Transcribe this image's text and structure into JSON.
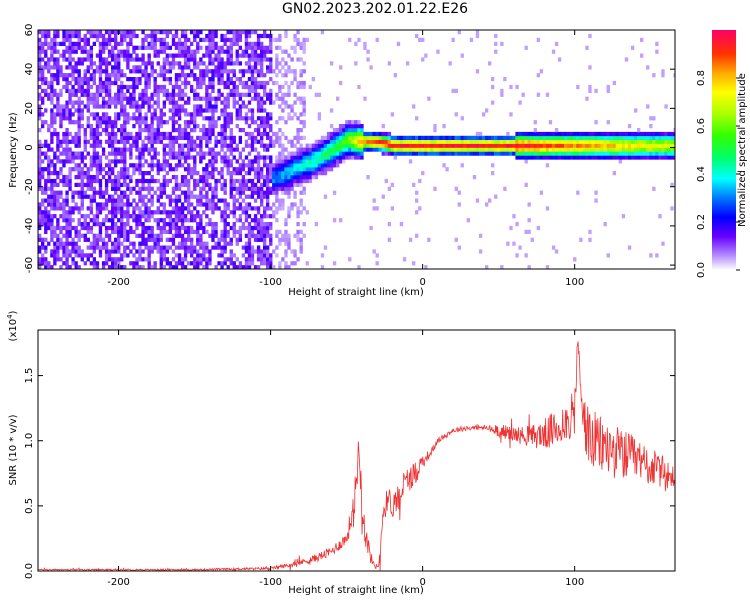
{
  "title": "GN02.2023.202.01.22.E26",
  "chart_data": [
    {
      "type": "heatmap",
      "title": "",
      "xlabel": "Height of straight line (km)",
      "ylabel": "Frequency (Hz)",
      "xlim": [
        -253,
        166
      ],
      "ylim": [
        -62,
        60
      ],
      "x_ticks": [
        "-200",
        "-100",
        "0",
        "100"
      ],
      "x_tick_values": [
        -200,
        -100,
        0,
        100
      ],
      "y_ticks": [
        "-60",
        "-40",
        "-20",
        "0",
        "20",
        "40",
        "60"
      ],
      "y_tick_values": [
        -60,
        -40,
        -20,
        0,
        20,
        40,
        60
      ],
      "colorbar": {
        "label": "Normalized spectral amplitude",
        "ticks": [
          "0.0",
          "0.2",
          "0.4",
          "0.6",
          "0.8"
        ],
        "tick_values": [
          0.0,
          0.2,
          0.4,
          0.6,
          0.8
        ],
        "range": [
          0.0,
          1.0
        ]
      },
      "noise_region": {
        "x": [
          -253,
          -100
        ],
        "amplitude": 0.1
      },
      "sparse_region": {
        "x": [
          -100,
          -78
        ],
        "amplitude": 0.05
      },
      "signal_trace": {
        "x": [
          -100,
          -90,
          -80,
          -70,
          -60,
          -50,
          -40,
          -30,
          -20,
          -10,
          0,
          20,
          40,
          60,
          80,
          100,
          120,
          140,
          166
        ],
        "frequency": [
          -17,
          -14,
          -10,
          -7,
          -2,
          3,
          2,
          2,
          0,
          0,
          0,
          0,
          0,
          0,
          0,
          0,
          0,
          0,
          0
        ],
        "peak_amplitude": [
          0.3,
          0.35,
          0.4,
          0.45,
          0.5,
          0.6,
          0.85,
          0.95,
          0.95,
          0.95,
          0.95,
          0.95,
          0.95,
          0.95,
          0.9,
          0.85,
          0.8,
          0.75,
          0.7
        ]
      }
    },
    {
      "type": "line",
      "title": "",
      "xlabel": "Height of straight line (km)",
      "ylabel": "SNR (10 * v/v)",
      "y_multiplier": "(x10^4)",
      "xlim": [
        -253,
        166
      ],
      "ylim": [
        0,
        1.85
      ],
      "x_ticks": [
        "-200",
        "-100",
        "0",
        "100"
      ],
      "x_tick_values": [
        -200,
        -100,
        0,
        100
      ],
      "y_ticks": [
        "0.0",
        "0.5",
        "1.0",
        "1.5"
      ],
      "y_tick_values": [
        0.0,
        0.5,
        1.0,
        1.5
      ],
      "series": [
        {
          "color": "#ee3333",
          "x": [
            -253,
            -200,
            -150,
            -100,
            -85,
            -70,
            -60,
            -50,
            -45,
            -42,
            -40,
            -38,
            -36,
            -34,
            -32,
            -30,
            -28,
            -27,
            -25,
            -22,
            -20,
            -15,
            -10,
            -5,
            0,
            5,
            10,
            20,
            30,
            40,
            50,
            60,
            70,
            80,
            90,
            95,
            100,
            102,
            105,
            110,
            120,
            130,
            140,
            150,
            160,
            166
          ],
          "y": [
            0.01,
            0.01,
            0.01,
            0.02,
            0.05,
            0.1,
            0.15,
            0.25,
            0.5,
            0.95,
            0.6,
            0.3,
            0.2,
            0.1,
            0.05,
            0.03,
            0.1,
            0.35,
            0.5,
            0.55,
            0.5,
            0.6,
            0.7,
            0.75,
            0.85,
            0.9,
            1.0,
            1.08,
            1.1,
            1.1,
            1.08,
            1.05,
            1.03,
            1.05,
            1.1,
            1.15,
            1.2,
            1.8,
            1.2,
            1.0,
            0.95,
            0.9,
            0.85,
            0.8,
            0.75,
            0.7
          ],
          "noise_amplitude": [
            0.005,
            0.005,
            0.005,
            0.01,
            0.02,
            0.03,
            0.04,
            0.05,
            0.15,
            0.15,
            0.15,
            0.1,
            0.08,
            0.05,
            0.02,
            0.02,
            0.05,
            0.1,
            0.1,
            0.1,
            0.1,
            0.1,
            0.1,
            0.1,
            0.05,
            0.03,
            0.02,
            0.02,
            0.02,
            0.02,
            0.05,
            0.06,
            0.08,
            0.12,
            0.15,
            0.15,
            0.2,
            0.05,
            0.2,
            0.25,
            0.22,
            0.2,
            0.18,
            0.15,
            0.12,
            0.1
          ]
        }
      ]
    }
  ]
}
